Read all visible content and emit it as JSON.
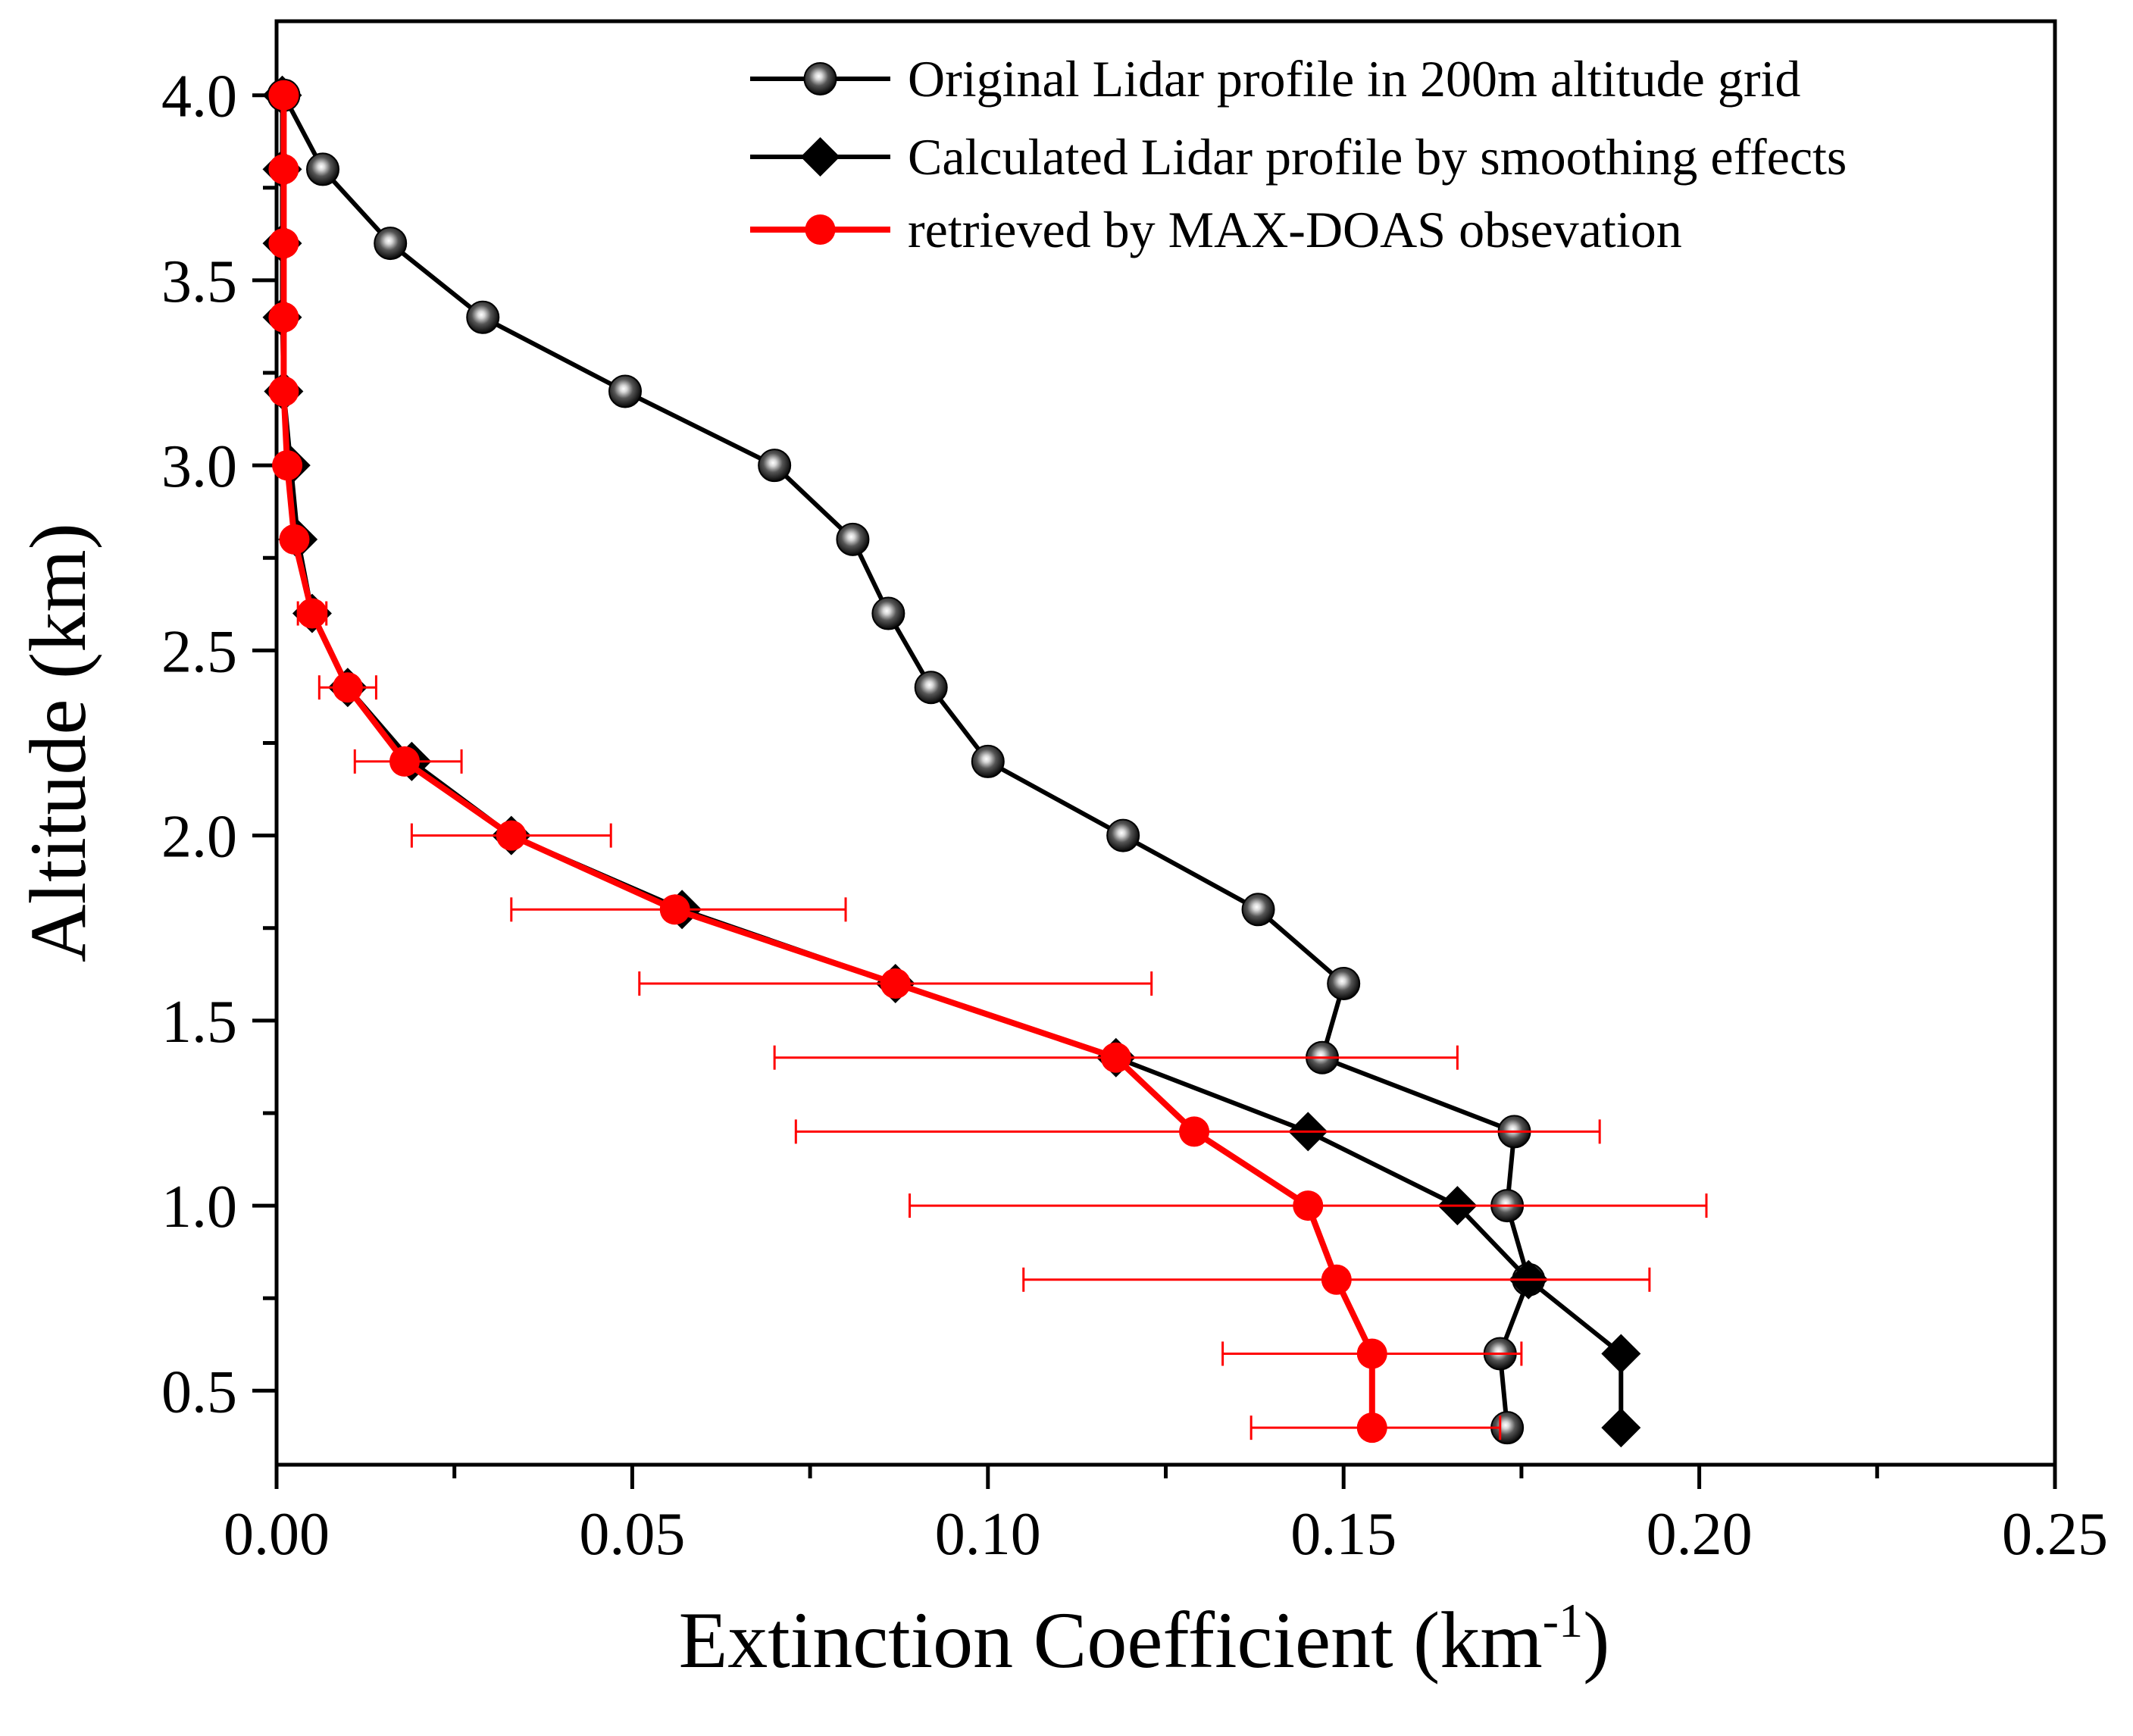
{
  "chart_data": {
    "type": "line",
    "title": "",
    "xlabel": "Extinction Coefficient (km",
    "xlabel_superscript": "-1",
    "xlabel_close": ")",
    "ylabel": "Altitude (km)",
    "xlim": [
      0.0,
      0.25
    ],
    "ylim": [
      0.3,
      4.2
    ],
    "xticks": [
      0.0,
      0.05,
      0.1,
      0.15,
      0.2,
      0.25
    ],
    "xtick_labels": [
      "0.00",
      "0.05",
      "0.10",
      "0.15",
      "0.20",
      "0.25"
    ],
    "yticks": [
      0.5,
      1.0,
      1.5,
      2.0,
      2.5,
      3.0,
      3.5,
      4.0
    ],
    "ytick_labels": [
      "0.5",
      "1.0",
      "1.5",
      "2.0",
      "2.5",
      "3.0",
      "3.5",
      "4.0"
    ],
    "grid": false,
    "legend_position": "top-right",
    "colors": {
      "black": "#000000",
      "red": "#ff0000"
    },
    "series": [
      {
        "name": "Original Lidar profile in 200m altitude grid",
        "color": "#000000",
        "marker": "sphere",
        "points": [
          [
            0.173,
            0.4
          ],
          [
            0.172,
            0.6
          ],
          [
            0.176,
            0.8
          ],
          [
            0.173,
            1.0
          ],
          [
            0.174,
            1.2
          ],
          [
            0.147,
            1.4
          ],
          [
            0.15,
            1.6
          ],
          [
            0.138,
            1.8
          ],
          [
            0.119,
            2.0
          ],
          [
            0.1,
            2.2
          ],
          [
            0.092,
            2.4
          ],
          [
            0.086,
            2.6
          ],
          [
            0.081,
            2.8
          ],
          [
            0.07,
            3.0
          ],
          [
            0.049,
            3.2
          ],
          [
            0.029,
            3.4
          ],
          [
            0.016,
            3.6
          ],
          [
            0.0065,
            3.8
          ],
          [
            0.001,
            4.0
          ]
        ]
      },
      {
        "name": "Calculated Lidar profile by smoothing effects",
        "color": "#000000",
        "marker": "diamond",
        "points": [
          [
            0.189,
            0.4
          ],
          [
            0.189,
            0.6
          ],
          [
            0.176,
            0.8
          ],
          [
            0.166,
            1.0
          ],
          [
            0.145,
            1.2
          ],
          [
            0.118,
            1.4
          ],
          [
            0.087,
            1.6
          ],
          [
            0.057,
            1.8
          ],
          [
            0.033,
            2.0
          ],
          [
            0.019,
            2.2
          ],
          [
            0.01,
            2.4
          ],
          [
            0.005,
            2.6
          ],
          [
            0.003,
            2.8
          ],
          [
            0.002,
            3.0
          ],
          [
            0.001,
            3.2
          ],
          [
            0.0008,
            3.4
          ],
          [
            0.0008,
            3.6
          ],
          [
            0.0008,
            3.8
          ],
          [
            0.0008,
            4.0
          ]
        ]
      },
      {
        "name": "retrieved by MAX-DOAS obsevation",
        "color": "#ff0000",
        "marker": "circle",
        "points": [
          [
            0.154,
            0.4
          ],
          [
            0.154,
            0.6
          ],
          [
            0.149,
            0.8
          ],
          [
            0.145,
            1.0
          ],
          [
            0.129,
            1.2
          ],
          [
            0.118,
            1.4
          ],
          [
            0.087,
            1.6
          ],
          [
            0.056,
            1.8
          ],
          [
            0.033,
            2.0
          ],
          [
            0.018,
            2.2
          ],
          [
            0.01,
            2.4
          ],
          [
            0.005,
            2.6
          ],
          [
            0.0025,
            2.8
          ],
          [
            0.0015,
            3.0
          ],
          [
            0.001,
            3.2
          ],
          [
            0.001,
            3.4
          ],
          [
            0.001,
            3.6
          ],
          [
            0.001,
            3.8
          ],
          [
            0.001,
            4.0
          ]
        ],
        "xerr": [
          [
            0.137,
            0.172
          ],
          [
            0.133,
            0.175
          ],
          [
            0.105,
            0.193
          ],
          [
            0.089,
            0.201
          ],
          [
            0.073,
            0.186
          ],
          [
            0.07,
            0.166
          ],
          [
            0.051,
            0.123
          ],
          [
            0.033,
            0.08
          ],
          [
            0.019,
            0.047
          ],
          [
            0.011,
            0.026
          ],
          [
            0.006,
            0.014
          ],
          [
            0.003,
            0.007
          ],
          [
            0.0015,
            0.0035
          ],
          [
            0.001,
            0.002
          ],
          [
            0.001,
            0.001
          ],
          [
            0.001,
            0.001
          ],
          [
            0.001,
            0.001
          ],
          [
            0.001,
            0.001
          ],
          [
            0.001,
            0.001
          ]
        ]
      }
    ]
  }
}
